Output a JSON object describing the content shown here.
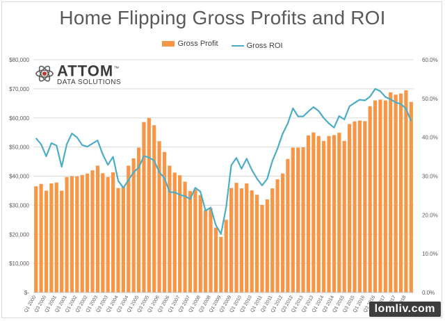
{
  "chart_data": {
    "type": "bar",
    "title": "Home Flipping Gross Profits and ROI",
    "legend": [
      "Gross Profit",
      "Gross ROI"
    ],
    "legend_position": "top",
    "grid": true,
    "colors": {
      "bar": "#f79646",
      "line": "#4bacc6"
    },
    "ylim_left": [
      0,
      80000
    ],
    "ylim_right": [
      0.0,
      60.0
    ],
    "y_ticks_left": [
      "$-",
      "$10,000",
      "$20,000",
      "$30,000",
      "$40,000",
      "$50,000",
      "$60,000",
      "$70,000",
      "$80,000"
    ],
    "y_ticks_right": [
      "0.0%",
      "10.0%",
      "20.0%",
      "30.0%",
      "40.0%",
      "50.0%",
      "60.0%"
    ],
    "categories": [
      "Q1 2000",
      "Q2 2000",
      "Q3 2000",
      "Q4 2000",
      "Q1 2001",
      "Q2 2001",
      "Q3 2001",
      "Q4 2001",
      "Q1 2002",
      "Q2 2002",
      "Q3 2002",
      "Q4 2002",
      "Q1 2003",
      "Q2 2003",
      "Q3 2003",
      "Q4 2003",
      "Q1 2004",
      "Q2 2004",
      "Q3 2004",
      "Q4 2004",
      "Q1 2005",
      "Q2 2005",
      "Q3 2005",
      "Q4 2005",
      "Q1 2006",
      "Q2 2006",
      "Q3 2006",
      "Q4 2006",
      "Q1 2007",
      "Q2 2007",
      "Q3 2007",
      "Q4 2007",
      "Q1 2008",
      "Q2 2008",
      "Q3 2008",
      "Q4 2008",
      "Q1 2009",
      "Q2 2009",
      "Q3 2009",
      "Q4 2009",
      "Q1 2010",
      "Q2 2010",
      "Q3 2010",
      "Q4 2010",
      "Q1 2011",
      "Q2 2011",
      "Q3 2011",
      "Q4 2011",
      "Q1 2012",
      "Q2 2012",
      "Q3 2012",
      "Q4 2012",
      "Q1 2013",
      "Q2 2013",
      "Q3 2013",
      "Q4 2013",
      "Q1 2014",
      "Q2 2014",
      "Q3 2014",
      "Q4 2014",
      "Q1 2015",
      "Q2 2015",
      "Q3 2015",
      "Q4 2015",
      "Q1 2016",
      "Q2 2016",
      "Q3 2016",
      "Q4 2016",
      "Q1 2017",
      "Q2 2017",
      "Q3 2017",
      "Q4 2017",
      "Q1 2018",
      "Q2 2018"
    ],
    "series": [
      {
        "name": "Gross Profit",
        "type": "bar",
        "axis": "left",
        "values": [
          36500,
          37300,
          35000,
          37500,
          37800,
          35000,
          39700,
          40000,
          39900,
          40400,
          40900,
          42000,
          43600,
          41000,
          39700,
          41300,
          35900,
          36500,
          43600,
          46100,
          49800,
          58600,
          60000,
          57500,
          52000,
          48300,
          43600,
          41200,
          40300,
          38100,
          34900,
          35400,
          33500,
          28300,
          29000,
          22300,
          19100,
          25000,
          35900,
          37700,
          35800,
          37500,
          35100,
          33600,
          30100,
          32000,
          35800,
          38900,
          40900,
          45900,
          49800,
          49800,
          49900,
          54000,
          55000,
          53800,
          52100,
          53800,
          54100,
          54900,
          52100,
          57900,
          58800,
          59100,
          58900,
          64000,
          66000,
          66300,
          66000,
          68800,
          68000,
          68400,
          69500,
          65500
        ]
      },
      {
        "name": "Gross ROI",
        "type": "line",
        "axis": "right",
        "values": [
          39.8,
          38.2,
          35.1,
          38.5,
          37.9,
          32.4,
          38.2,
          41.0,
          40.0,
          38.0,
          37.6,
          38.4,
          39.2,
          35.6,
          32.9,
          35.0,
          28.8,
          27.0,
          29.0,
          31.0,
          32.2,
          35.2,
          34.8,
          34.0,
          31.0,
          29.5,
          25.9,
          25.8,
          25.2,
          24.8,
          24.1,
          27.0,
          26.0,
          21.1,
          21.9,
          17.4,
          15.1,
          21.9,
          32.8,
          34.7,
          31.9,
          34.5,
          31.6,
          29.4,
          27.6,
          29.3,
          33.9,
          37.1,
          40.9,
          43.6,
          47.5,
          45.4,
          45.4,
          46.7,
          47.8,
          46.8,
          45.0,
          43.6,
          42.5,
          45.5,
          44.6,
          48.0,
          48.9,
          49.7,
          49.5,
          50.5,
          52.5,
          51.9,
          50.4,
          49.8,
          49.0,
          48.6,
          47.4,
          44.2
        ]
      }
    ]
  },
  "logo": {
    "name": "ATTOM",
    "mark": "™",
    "subtitle": "DATA SOLUTIONS"
  },
  "watermark": {
    "text": "lomliv.com"
  }
}
